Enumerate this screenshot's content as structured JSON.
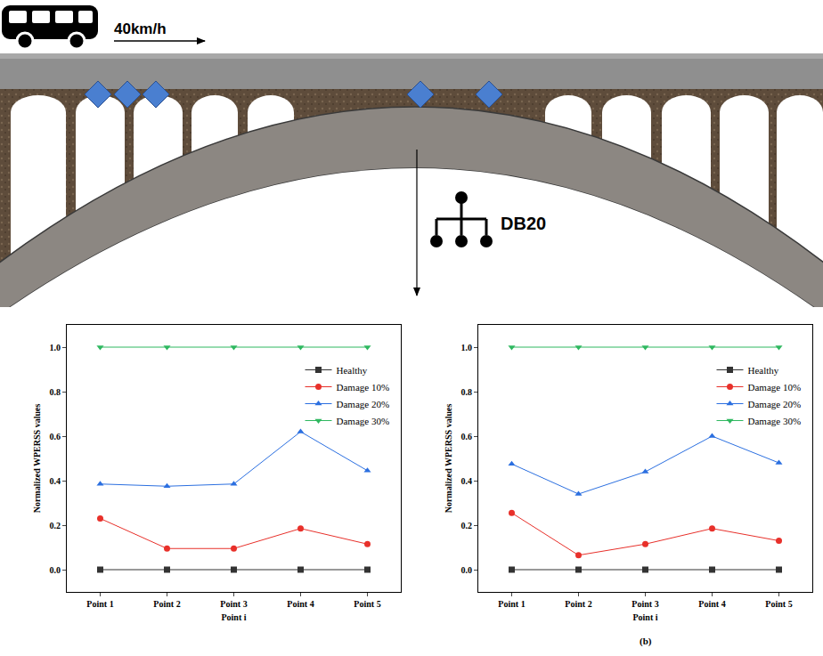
{
  "diagram": {
    "speed": "40km/h",
    "wavelet": "DB20"
  },
  "chart_data": [
    {
      "type": "line",
      "categories": [
        "Point 1",
        "Point 2",
        "Point 3",
        "Point 4",
        "Point 5"
      ],
      "series": [
        {
          "name": "Healthy",
          "color": "#333333",
          "marker": "square",
          "values": [
            0,
            0,
            0,
            0,
            0
          ]
        },
        {
          "name": "Damage 10%",
          "color": "#e8302a",
          "marker": "circle",
          "values": [
            0.23,
            0.095,
            0.095,
            0.185,
            0.115
          ]
        },
        {
          "name": "Damage 20%",
          "color": "#2b6fe0",
          "marker": "triangle-up",
          "values": [
            0.385,
            0.375,
            0.385,
            0.62,
            0.445
          ]
        },
        {
          "name": "Damage 30%",
          "color": "#2fb860",
          "marker": "triangle-down",
          "values": [
            1,
            1,
            1,
            1,
            1
          ]
        }
      ],
      "ylim": [
        -0.1,
        1.1
      ],
      "yticks": [
        {
          "value": 0,
          "label": "0.0"
        },
        {
          "value": 0.2,
          "label": "0.2"
        },
        {
          "value": 0.4,
          "label": "0.4"
        },
        {
          "value": 0.6,
          "label": "0.6"
        },
        {
          "value": 0.8,
          "label": "0.8"
        },
        {
          "value": 1,
          "label": "1.0"
        }
      ],
      "x_label": "Point i",
      "y_label": "Normalized WPERSS values",
      "legend": "upper right",
      "grid": false
    },
    {
      "type": "line",
      "categories": [
        "Point 1",
        "Point 2",
        "Point 3",
        "Point 4",
        "Point 5"
      ],
      "series": [
        {
          "name": "Healthy",
          "color": "#333333",
          "marker": "square",
          "values": [
            0,
            0,
            0,
            0,
            0
          ]
        },
        {
          "name": "Damage 10%",
          "color": "#e8302a",
          "marker": "circle",
          "values": [
            0.255,
            0.065,
            0.115,
            0.185,
            0.13
          ]
        },
        {
          "name": "Damage 20%",
          "color": "#2b6fe0",
          "marker": "triangle-up",
          "values": [
            0.475,
            0.34,
            0.44,
            0.6,
            0.48
          ]
        },
        {
          "name": "Damage 30%",
          "color": "#2fb860",
          "marker": "triangle-down",
          "values": [
            1,
            1,
            1,
            1,
            1
          ]
        }
      ],
      "ylim": [
        -0.1,
        1.1
      ],
      "yticks": [
        {
          "value": 0,
          "label": "0.0"
        },
        {
          "value": 0.2,
          "label": "0.2"
        },
        {
          "value": 0.4,
          "label": "0.4"
        },
        {
          "value": 0.6,
          "label": "0.6"
        },
        {
          "value": 0.8,
          "label": "0.8"
        },
        {
          "value": 1,
          "label": "1.0"
        }
      ],
      "x_label": "Point i",
      "y_label": "Normalized WPERSS values",
      "legend": "upper right",
      "grid": false,
      "annotations": [
        "(b)"
      ]
    }
  ]
}
